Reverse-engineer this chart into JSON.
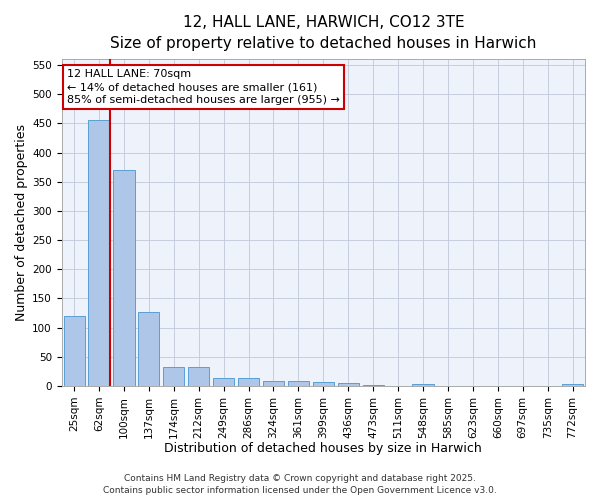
{
  "title_line1": "12, HALL LANE, HARWICH, CO12 3TE",
  "title_line2": "Size of property relative to detached houses in Harwich",
  "xlabel": "Distribution of detached houses by size in Harwich",
  "ylabel": "Number of detached properties",
  "categories": [
    "25sqm",
    "62sqm",
    "100sqm",
    "137sqm",
    "174sqm",
    "212sqm",
    "249sqm",
    "286sqm",
    "324sqm",
    "361sqm",
    "399sqm",
    "436sqm",
    "473sqm",
    "511sqm",
    "548sqm",
    "585sqm",
    "623sqm",
    "660sqm",
    "697sqm",
    "735sqm",
    "772sqm"
  ],
  "values": [
    120,
    455,
    370,
    127,
    33,
    33,
    13,
    13,
    8,
    8,
    6,
    5,
    1,
    0,
    3,
    0,
    0,
    0,
    0,
    0,
    3
  ],
  "bar_color": "#aec6e8",
  "bar_edge_color": "#5a9fd4",
  "red_line_index": 1,
  "annotation_line1": "12 HALL LANE: 70sqm",
  "annotation_line2": "← 14% of detached houses are smaller (161)",
  "annotation_line3": "85% of semi-detached houses are larger (955) →",
  "annotation_box_color": "#ffffff",
  "annotation_box_edge": "#cc0000",
  "annotation_text_color": "#000000",
  "red_line_color": "#cc0000",
  "ylim": [
    0,
    560
  ],
  "yticks": [
    0,
    50,
    100,
    150,
    200,
    250,
    300,
    350,
    400,
    450,
    500,
    550
  ],
  "background_color": "#eef2fb",
  "footer_line1": "Contains HM Land Registry data © Crown copyright and database right 2025.",
  "footer_line2": "Contains public sector information licensed under the Open Government Licence v3.0.",
  "title_fontsize": 11,
  "subtitle_fontsize": 10,
  "axis_label_fontsize": 9,
  "tick_fontsize": 7.5,
  "annotation_fontsize": 8,
  "footer_fontsize": 6.5
}
